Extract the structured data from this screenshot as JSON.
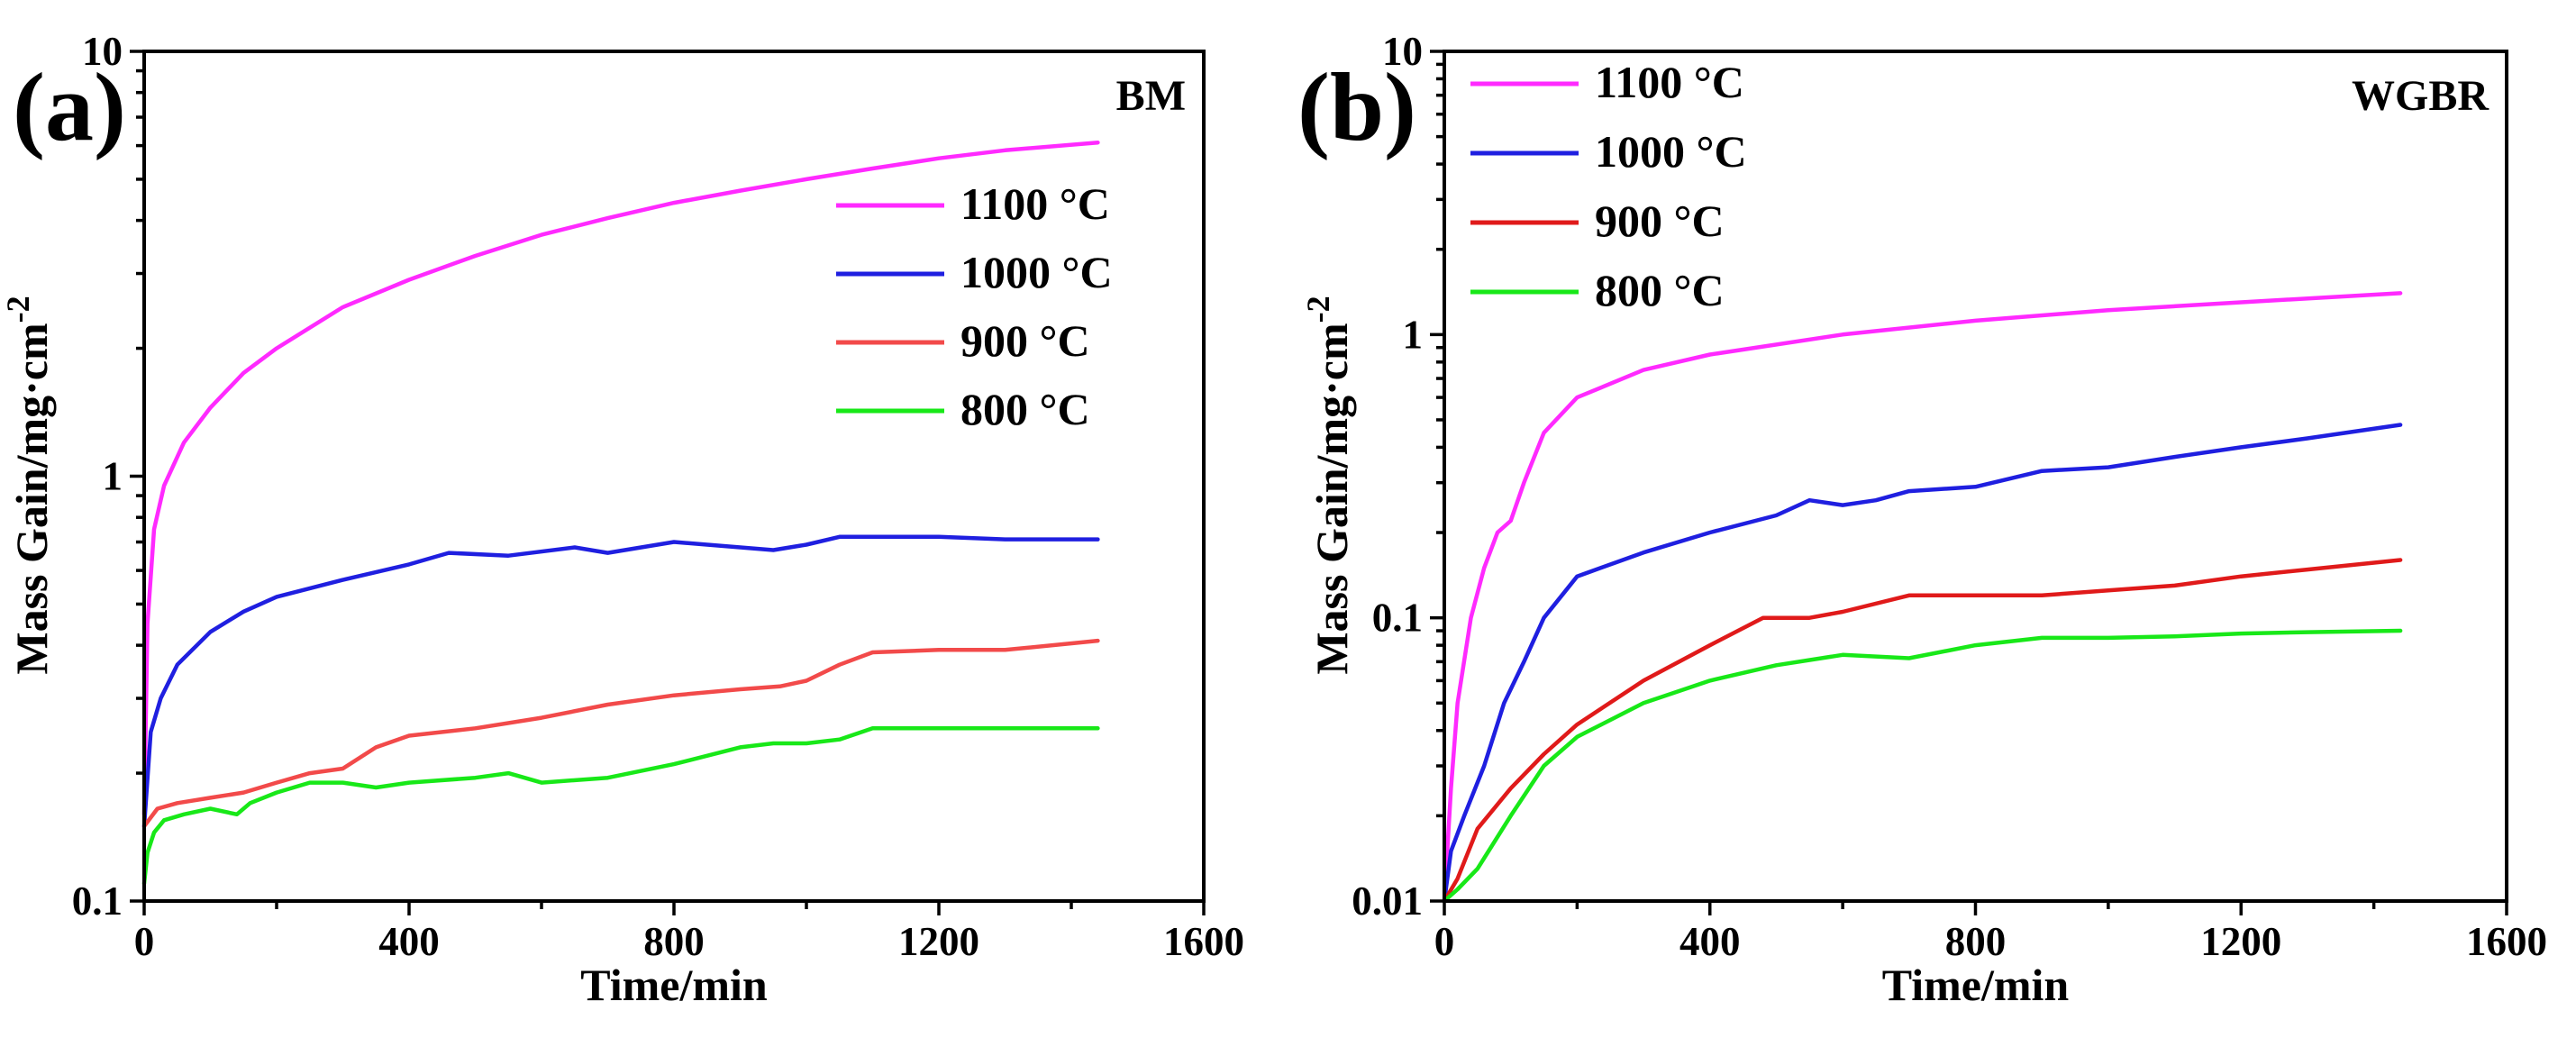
{
  "chart_data": [
    {
      "type": "line",
      "panel_label": "(a)",
      "title": "BM",
      "xlabel": "Time/min",
      "ylabel": "Mass Gain/mg·cm",
      "ylabel_sup": "-2",
      "xlim": [
        0,
        1600
      ],
      "ylim": [
        0.1,
        10
      ],
      "yscale": "log",
      "x_ticks": [
        0,
        400,
        800,
        1200,
        1600
      ],
      "x_tick_labels": [
        "0",
        "400",
        "800",
        "1200",
        "1600"
      ],
      "y_ticks": [
        0.1,
        1,
        10
      ],
      "y_tick_labels": [
        "0.1",
        "1",
        "10"
      ],
      "legend_position": "right-middle",
      "series": [
        {
          "name": "1100 °C",
          "color": "#ff2aff",
          "x": [
            0,
            5,
            15,
            30,
            60,
            100,
            150,
            200,
            300,
            400,
            500,
            600,
            700,
            800,
            900,
            1000,
            1100,
            1200,
            1300,
            1440
          ],
          "y": [
            0.16,
            0.45,
            0.75,
            0.95,
            1.2,
            1.45,
            1.75,
            2.0,
            2.5,
            2.9,
            3.3,
            3.7,
            4.05,
            4.4,
            4.7,
            5.0,
            5.3,
            5.6,
            5.85,
            6.1
          ]
        },
        {
          "name": "1000 °C",
          "color": "#1f1fe0",
          "x": [
            0,
            10,
            25,
            50,
            100,
            150,
            200,
            300,
            400,
            460,
            550,
            650,
            700,
            800,
            850,
            950,
            1000,
            1050,
            1200,
            1300,
            1440
          ],
          "y": [
            0.15,
            0.25,
            0.3,
            0.36,
            0.43,
            0.48,
            0.52,
            0.57,
            0.62,
            0.66,
            0.65,
            0.68,
            0.66,
            0.7,
            0.69,
            0.67,
            0.69,
            0.72,
            0.72,
            0.71,
            0.71
          ]
        },
        {
          "name": "900 °C",
          "color": "#f24a4a",
          "x": [
            0,
            20,
            50,
            100,
            150,
            200,
            250,
            300,
            350,
            400,
            500,
            600,
            700,
            800,
            900,
            960,
            1000,
            1050,
            1100,
            1200,
            1300,
            1440
          ],
          "y": [
            0.15,
            0.165,
            0.17,
            0.175,
            0.18,
            0.19,
            0.2,
            0.205,
            0.23,
            0.245,
            0.255,
            0.27,
            0.29,
            0.305,
            0.315,
            0.32,
            0.33,
            0.36,
            0.385,
            0.39,
            0.39,
            0.41
          ]
        },
        {
          "name": "800 °C",
          "color": "#18e818",
          "x": [
            0,
            5,
            15,
            30,
            60,
            100,
            140,
            160,
            200,
            250,
            300,
            350,
            400,
            500,
            550,
            600,
            700,
            800,
            900,
            950,
            1000,
            1050,
            1100,
            1200,
            1300,
            1440
          ],
          "y": [
            0.11,
            0.13,
            0.145,
            0.155,
            0.16,
            0.165,
            0.16,
            0.17,
            0.18,
            0.19,
            0.19,
            0.185,
            0.19,
            0.195,
            0.2,
            0.19,
            0.195,
            0.21,
            0.23,
            0.235,
            0.235,
            0.24,
            0.255,
            0.255,
            0.255,
            0.255
          ]
        }
      ]
    },
    {
      "type": "line",
      "panel_label": "(b)",
      "title": "WGBR",
      "xlabel": "Time/min",
      "ylabel": "Mass Gain/mg·cm",
      "ylabel_sup": "-2",
      "xlim": [
        0,
        1600
      ],
      "ylim": [
        0.01,
        10
      ],
      "yscale": "log",
      "x_ticks": [
        0,
        400,
        800,
        1200,
        1600
      ],
      "x_tick_labels": [
        "0",
        "400",
        "800",
        "1200",
        "1600"
      ],
      "y_ticks": [
        0.01,
        0.1,
        1,
        10
      ],
      "y_tick_labels": [
        "0.01",
        "0.1",
        "1",
        "10"
      ],
      "legend_position": "top-left",
      "series": [
        {
          "name": "1100 °C",
          "color": "#ff2aff",
          "x": [
            0,
            10,
            20,
            40,
            60,
            80,
            100,
            120,
            150,
            200,
            300,
            400,
            600,
            800,
            1000,
            1200,
            1440
          ],
          "y": [
            0.01,
            0.025,
            0.05,
            0.1,
            0.15,
            0.2,
            0.22,
            0.3,
            0.45,
            0.6,
            0.75,
            0.85,
            1.0,
            1.12,
            1.22,
            1.3,
            1.4
          ]
        },
        {
          "name": "1000 °C",
          "color": "#1f1fe0",
          "x": [
            0,
            10,
            30,
            60,
            90,
            120,
            150,
            200,
            300,
            400,
            500,
            550,
            600,
            650,
            700,
            800,
            900,
            1000,
            1100,
            1200,
            1300,
            1440
          ],
          "y": [
            0.01,
            0.015,
            0.02,
            0.03,
            0.05,
            0.07,
            0.1,
            0.14,
            0.17,
            0.2,
            0.23,
            0.26,
            0.25,
            0.26,
            0.28,
            0.29,
            0.33,
            0.34,
            0.37,
            0.4,
            0.43,
            0.48
          ]
        },
        {
          "name": "900 °C",
          "color": "#e01a1a",
          "x": [
            0,
            20,
            50,
            100,
            150,
            200,
            300,
            400,
            480,
            550,
            600,
            700,
            800,
            900,
            1000,
            1100,
            1200,
            1300,
            1440
          ],
          "y": [
            0.01,
            0.012,
            0.018,
            0.025,
            0.033,
            0.042,
            0.06,
            0.08,
            0.1,
            0.1,
            0.105,
            0.12,
            0.12,
            0.12,
            0.125,
            0.13,
            0.14,
            0.148,
            0.16
          ]
        },
        {
          "name": "800 °C",
          "color": "#18e818",
          "x": [
            0,
            20,
            50,
            100,
            150,
            200,
            300,
            400,
            500,
            600,
            700,
            800,
            900,
            1000,
            1100,
            1200,
            1300,
            1440
          ],
          "y": [
            0.01,
            0.011,
            0.013,
            0.02,
            0.03,
            0.038,
            0.05,
            0.06,
            0.068,
            0.074,
            0.072,
            0.08,
            0.085,
            0.085,
            0.086,
            0.088,
            0.089,
            0.09
          ]
        }
      ]
    }
  ]
}
